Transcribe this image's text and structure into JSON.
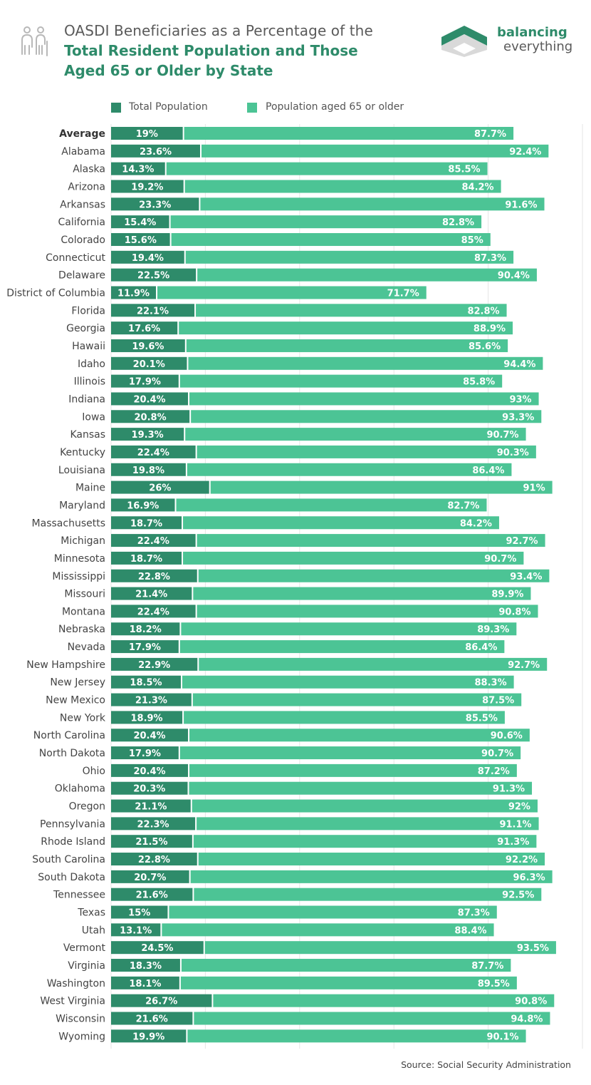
{
  "header": {
    "title_line1": "OASDI Beneficiaries as a Percentage of the",
    "title_line2": "Total Resident Population and Those",
    "title_line3": "Aged 65 or Older by State",
    "brand_top": "balancing",
    "brand_bottom": "everything"
  },
  "colors": {
    "total": "#2e8b6a",
    "aged": "#4cc495",
    "title_accent": "#2e8b6a",
    "grid": "#e6e6e6"
  },
  "legend": {
    "total_label": "Total Population",
    "aged_label": "Population aged 65 or older"
  },
  "source": "Source: Social Security Administration",
  "chart_data": {
    "type": "bar",
    "orientation": "horizontal",
    "stacked": true,
    "title": "OASDI Beneficiaries as a Percentage of the Total Resident Population and Those Aged 65 or Older by State",
    "categories": [
      "Average",
      "Alabama",
      "Alaska",
      "Arizona",
      "Arkansas",
      "California",
      "Colorado",
      "Connecticut",
      "Delaware",
      "District of Columbia",
      "Florida",
      "Georgia",
      "Hawaii",
      "Idaho",
      "Illinois",
      "Indiana",
      "Iowa",
      "Kansas",
      "Kentucky",
      "Louisiana",
      "Maine",
      "Maryland",
      "Massachusetts",
      "Michigan",
      "Minnesota",
      "Mississippi",
      "Missouri",
      "Montana",
      "Nebraska",
      "Nevada",
      "New Hampshire",
      "New Jersey",
      "New Mexico",
      "New York",
      "North Carolina",
      "North Dakota",
      "Ohio",
      "Oklahoma",
      "Oregon",
      "Pennsylvania",
      "Rhode Island",
      "South Carolina",
      "South Dakota",
      "Tennessee",
      "Texas",
      "Utah",
      "Vermont",
      "Virginia",
      "Washington",
      "West Virginia",
      "Wisconsin",
      "Wyoming"
    ],
    "series": [
      {
        "name": "Total Population",
        "labels": [
          "19%",
          "23.6%",
          "14.3%",
          "19.2%",
          "23.3%",
          "15.4%",
          "15.6%",
          "19.4%",
          "22.5%",
          "11.9%",
          "22.1%",
          "17.6%",
          "19.6%",
          "20.1%",
          "17.9%",
          "20.4%",
          "20.8%",
          "19.3%",
          "22.4%",
          "19.8%",
          "26%",
          "16.9%",
          "18.7%",
          "22.4%",
          "18.7%",
          "22.8%",
          "21.4%",
          "22.4%",
          "18.2%",
          "17.9%",
          "22.9%",
          "18.5%",
          "21.3%",
          "18.9%",
          "20.4%",
          "17.9%",
          "20.4%",
          "20.3%",
          "21.1%",
          "22.3%",
          "21.5%",
          "22.8%",
          "20.7%",
          "21.6%",
          "15%",
          "13.1%",
          "24.5%",
          "18.3%",
          "18.1%",
          "26.7%",
          "21.6%",
          "19.9%"
        ],
        "values": [
          19,
          23.6,
          14.3,
          19.2,
          23.3,
          15.4,
          15.6,
          19.4,
          22.5,
          11.9,
          22.1,
          17.6,
          19.6,
          20.1,
          17.9,
          20.4,
          20.8,
          19.3,
          22.4,
          19.8,
          26,
          16.9,
          18.7,
          22.4,
          18.7,
          22.8,
          21.4,
          22.4,
          18.2,
          17.9,
          22.9,
          18.5,
          21.3,
          18.9,
          20.4,
          17.9,
          20.4,
          20.3,
          21.1,
          22.3,
          21.5,
          22.8,
          20.7,
          21.6,
          15,
          13.1,
          24.5,
          18.3,
          18.1,
          26.7,
          21.6,
          19.9
        ]
      },
      {
        "name": "Population aged 65 or older",
        "labels": [
          "87.7%",
          "92.4%",
          "85.5%",
          "84.2%",
          "91.6%",
          "82.8%",
          "85%",
          "87.3%",
          "90.4%",
          "71.7%",
          "82.8%",
          "88.9%",
          "85.6%",
          "94.4%",
          "85.8%",
          "93%",
          "93.3%",
          "90.7%",
          "90.3%",
          "86.4%",
          "91%",
          "82.7%",
          "84.2%",
          "92.7%",
          "90.7%",
          "93.4%",
          "89.9%",
          "90.8%",
          "89.3%",
          "86.4%",
          "92.7%",
          "88.3%",
          "87.5%",
          "85.5%",
          "90.6%",
          "90.7%",
          "87.2%",
          "91.3%",
          "92%",
          "91.1%",
          "91.3%",
          "92.2%",
          "96.3%",
          "92.5%",
          "87.3%",
          "88.4%",
          "93.5%",
          "87.7%",
          "89.5%",
          "90.8%",
          "94.8%",
          "90.1%"
        ],
        "values": [
          87.7,
          92.4,
          85.5,
          84.2,
          91.6,
          82.8,
          85,
          87.3,
          90.4,
          71.7,
          82.8,
          88.9,
          85.6,
          94.4,
          85.8,
          93,
          93.3,
          90.7,
          90.3,
          86.4,
          91,
          82.7,
          84.2,
          92.7,
          90.7,
          93.4,
          89.9,
          90.8,
          89.3,
          86.4,
          92.7,
          88.3,
          87.5,
          85.5,
          90.6,
          90.7,
          87.2,
          91.3,
          92,
          91.1,
          91.3,
          92.2,
          96.3,
          92.5,
          87.3,
          88.4,
          93.5,
          87.7,
          89.5,
          90.8,
          94.8,
          90.1
        ]
      }
    ],
    "xlabel": "",
    "ylabel": "",
    "xlim": [
      0,
      125
    ],
    "grid": true,
    "legend_position": "top-left"
  }
}
